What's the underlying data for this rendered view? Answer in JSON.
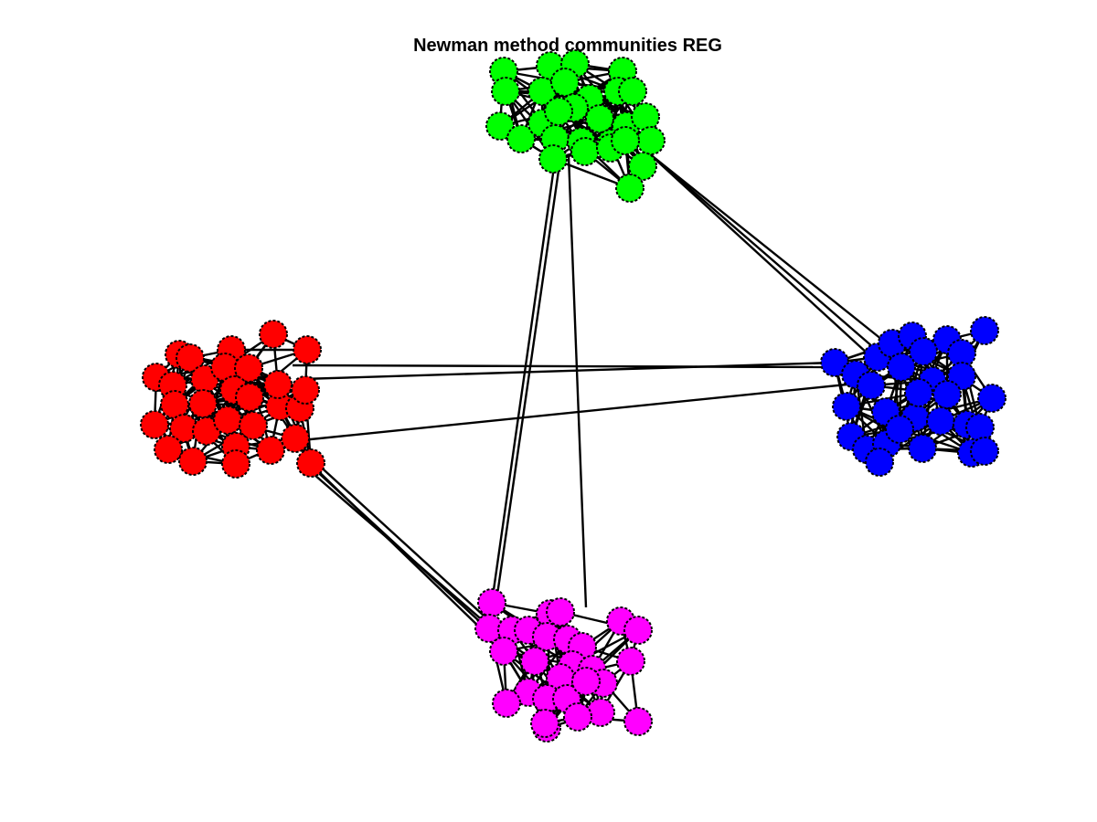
{
  "figure": {
    "title": "Newman method communities REG",
    "background": "#ffffff",
    "edge_color": "#000000",
    "node_outline": "#000000"
  },
  "communities": [
    {
      "name": "green",
      "color": "#00ff00",
      "node_count": 28
    },
    {
      "name": "red",
      "color": "#ff0000",
      "node_count": 30
    },
    {
      "name": "blue",
      "color": "#0000ff",
      "node_count": 30
    },
    {
      "name": "magenta",
      "color": "#ff00ff",
      "node_count": 28
    }
  ],
  "inter_community_links": [
    {
      "from": "green",
      "to": "blue",
      "count": 3
    },
    {
      "from": "green",
      "to": "magenta",
      "count": 3
    },
    {
      "from": "red",
      "to": "blue",
      "count": 3
    },
    {
      "from": "red",
      "to": "magenta",
      "count": 4
    }
  ]
}
